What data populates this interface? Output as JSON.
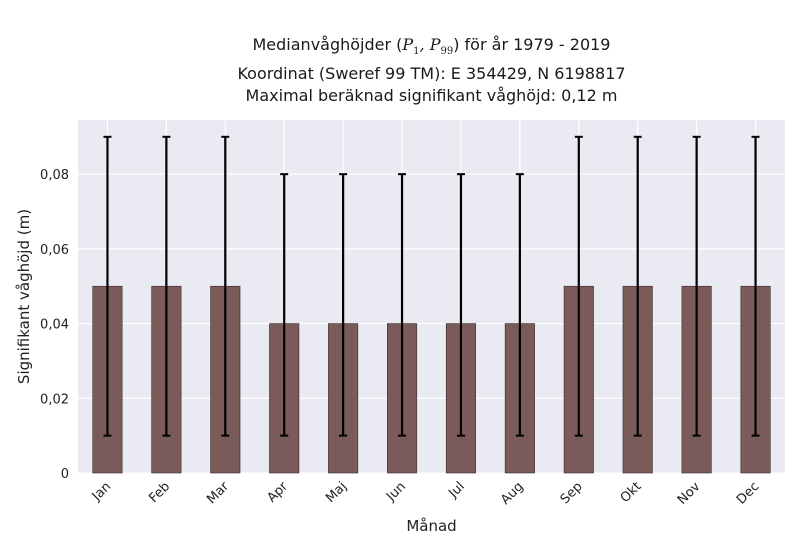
{
  "chart_data": {
    "type": "bar",
    "title_line1_prefix": "Medianvåghöjder (",
    "title_line1_p1": "P",
    "title_line1_p1_sub": "1",
    "title_line1_sep": ", ",
    "title_line1_p99": "P",
    "title_line1_p99_sub": "99",
    "title_line1_suffix": ") för år 1979 - 2019",
    "title_line2": "Koordinat (Sweref 99 TM): E 354429, N 6198817",
    "title_line3": "Maximal beräknad signifikant våghöjd: 0,12 m",
    "xlabel": "Månad",
    "ylabel": "Signifikant våghöjd (m)",
    "categories": [
      "Jan",
      "Feb",
      "Mar",
      "Apr",
      "Maj",
      "Jun",
      "Jul",
      "Aug",
      "Sep",
      "Okt",
      "Nov",
      "Dec"
    ],
    "values": [
      0.05,
      0.05,
      0.05,
      0.04,
      0.04,
      0.04,
      0.04,
      0.04,
      0.05,
      0.05,
      0.05,
      0.05
    ],
    "error_low": [
      0.01,
      0.01,
      0.01,
      0.01,
      0.01,
      0.01,
      0.01,
      0.01,
      0.01,
      0.01,
      0.01,
      0.01
    ],
    "error_high": [
      0.09,
      0.09,
      0.09,
      0.08,
      0.08,
      0.08,
      0.08,
      0.08,
      0.09,
      0.09,
      0.09,
      0.09
    ],
    "yticks": [
      0,
      0.02,
      0.04,
      0.06,
      0.08
    ],
    "ytick_labels": [
      "0",
      "0,02",
      "0,04",
      "0,06",
      "0,08"
    ],
    "ylim": [
      0,
      0.0945
    ],
    "grid": true,
    "bar_color": "#7b5a5a",
    "background_color": "#eaeaf2",
    "grid_color": "#ffffff",
    "error_color": "#000000"
  }
}
